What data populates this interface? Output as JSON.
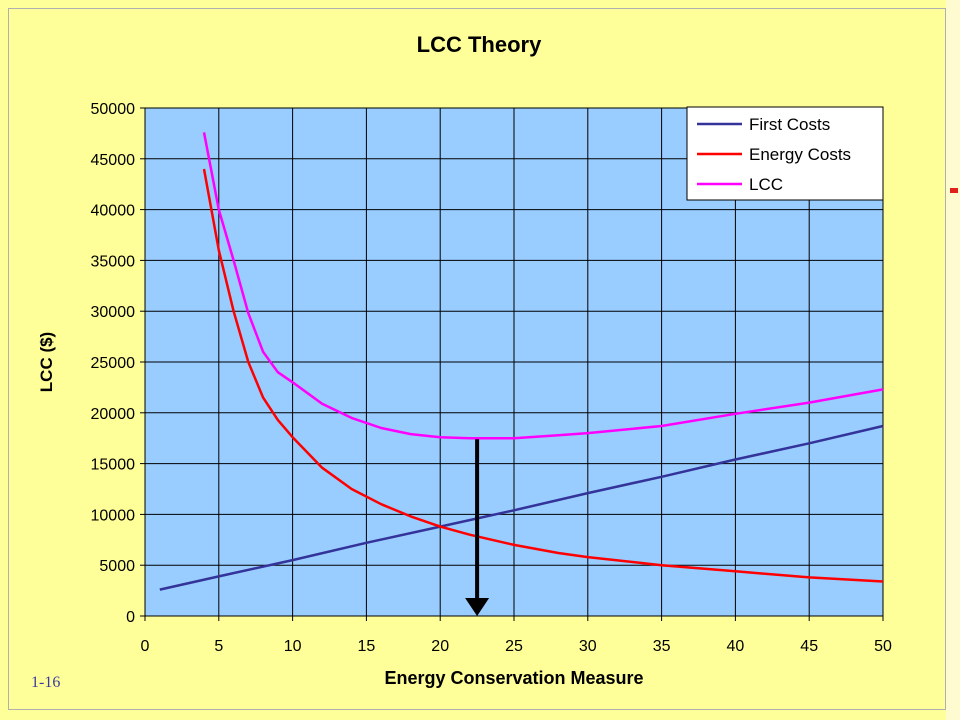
{
  "slide_number": "1-16",
  "chart_data": {
    "type": "line",
    "title": "LCC Theory",
    "xlabel": "Energy Conservation Measure",
    "ylabel": "LCC ($)",
    "xlim": [
      0,
      50
    ],
    "ylim": [
      0,
      50000
    ],
    "x_ticks": [
      0,
      5,
      10,
      15,
      20,
      25,
      30,
      35,
      40,
      45,
      50
    ],
    "y_ticks": [
      0,
      5000,
      10000,
      15000,
      20000,
      25000,
      30000,
      35000,
      40000,
      45000,
      50000
    ],
    "grid": true,
    "legend_position": "top-right",
    "plot_background": "#99ccff",
    "series": [
      {
        "name": "First Costs",
        "color": "#333399",
        "x": [
          1,
          5,
          10,
          15,
          20,
          25,
          30,
          35,
          40,
          45,
          50
        ],
        "y": [
          2600,
          3900,
          5500,
          7200,
          8800,
          10400,
          12100,
          13700,
          15400,
          17000,
          18700
        ]
      },
      {
        "name": "Energy Costs",
        "color": "#ff0000",
        "x": [
          4,
          5,
          6,
          7,
          8,
          9,
          10,
          12,
          14,
          16,
          18,
          20,
          22,
          25,
          28,
          30,
          35,
          40,
          45,
          50
        ],
        "y": [
          44000,
          36000,
          30000,
          25000,
          21500,
          19300,
          17600,
          14600,
          12500,
          11000,
          9800,
          8800,
          8000,
          7000,
          6200,
          5800,
          5000,
          4400,
          3800,
          3400
        ]
      },
      {
        "name": "LCC",
        "color": "#ff00ff",
        "x": [
          4,
          5,
          6,
          7,
          8,
          9,
          10,
          12,
          14,
          16,
          18,
          20,
          22,
          25,
          28,
          30,
          35,
          40,
          45,
          50
        ],
        "y": [
          47600,
          40000,
          35000,
          29800,
          26000,
          24000,
          23000,
          20900,
          19500,
          18500,
          17900,
          17600,
          17500,
          17500,
          17800,
          18000,
          18700,
          19900,
          21000,
          22300
        ]
      }
    ],
    "annotations": [
      {
        "type": "arrow",
        "x": 22.5,
        "from_y": 17400,
        "to_y": 0,
        "color": "#000000"
      }
    ]
  }
}
